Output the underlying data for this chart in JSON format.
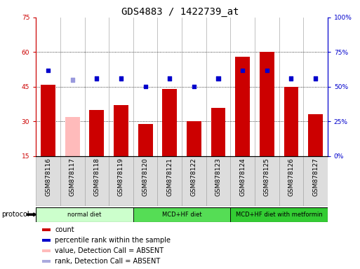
{
  "title": "GDS4883 / 1422739_at",
  "samples": [
    "GSM878116",
    "GSM878117",
    "GSM878118",
    "GSM878119",
    "GSM878120",
    "GSM878121",
    "GSM878122",
    "GSM878123",
    "GSM878124",
    "GSM878125",
    "GSM878126",
    "GSM878127"
  ],
  "bar_values": [
    46,
    32,
    35,
    37,
    29,
    44,
    30,
    36,
    58,
    60,
    45,
    33
  ],
  "bar_colors": [
    "#cc0000",
    "#ffbbbb",
    "#cc0000",
    "#cc0000",
    "#cc0000",
    "#cc0000",
    "#cc0000",
    "#cc0000",
    "#cc0000",
    "#cc0000",
    "#cc0000",
    "#cc0000"
  ],
  "dot_values": [
    62,
    55,
    56,
    56,
    50,
    56,
    50,
    56,
    62,
    62,
    56,
    56
  ],
  "dot_colors": [
    "#0000cc",
    "#9999dd",
    "#0000cc",
    "#0000cc",
    "#0000cc",
    "#0000cc",
    "#0000cc",
    "#0000cc",
    "#0000cc",
    "#0000cc",
    "#0000cc",
    "#0000cc"
  ],
  "ylim_left": [
    15,
    75
  ],
  "ylim_right": [
    0,
    100
  ],
  "yticks_left": [
    15,
    30,
    45,
    60,
    75
  ],
  "yticks_right": [
    0,
    25,
    50,
    75,
    100
  ],
  "ytick_labels_right": [
    "0%",
    "25%",
    "50%",
    "75%",
    "100%"
  ],
  "grid_values": [
    30,
    45,
    60
  ],
  "protocol_groups": [
    {
      "label": "normal diet",
      "start": 0,
      "end": 3,
      "color": "#ccffcc"
    },
    {
      "label": "MCD+HF diet",
      "start": 4,
      "end": 7,
      "color": "#55dd55"
    },
    {
      "label": "MCD+HF diet with metformin",
      "start": 8,
      "end": 11,
      "color": "#33cc33"
    }
  ],
  "legend_items": [
    {
      "color": "#cc0000",
      "label": "count"
    },
    {
      "color": "#0000cc",
      "label": "percentile rank within the sample"
    },
    {
      "color": "#ffbbbb",
      "label": "value, Detection Call = ABSENT"
    },
    {
      "color": "#aaaadd",
      "label": "rank, Detection Call = ABSENT"
    }
  ],
  "protocol_label": "protocol",
  "title_fontsize": 10,
  "tick_fontsize": 6.5,
  "axis_label_color_left": "#cc0000",
  "axis_label_color_right": "#0000cc",
  "bg_color": "#dddddd"
}
